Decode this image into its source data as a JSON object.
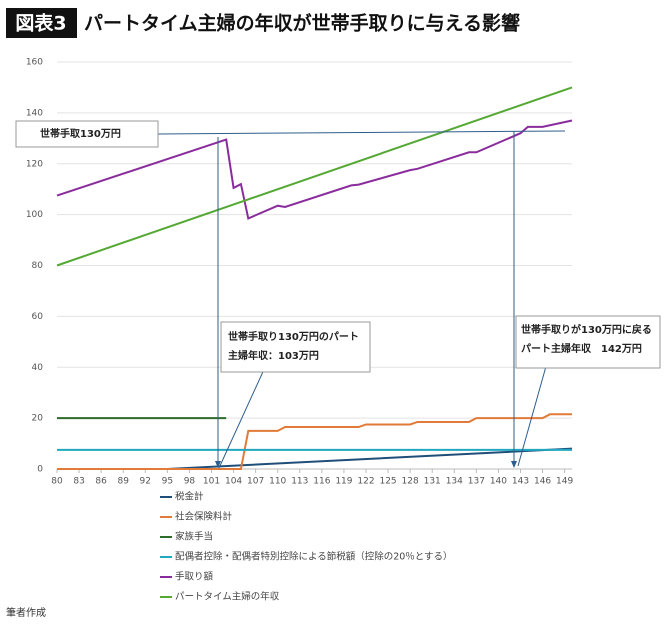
{
  "figure_label": "図表3",
  "chart_data": {
    "type": "line",
    "title": "パートタイム主婦の年収が世帯手取りに与える影響",
    "xlim": [
      80,
      150
    ],
    "xticks": [
      80,
      83,
      86,
      89,
      92,
      95,
      98,
      101,
      104,
      107,
      110,
      113,
      116,
      119,
      122,
      125,
      128,
      131,
      134,
      137,
      140,
      143,
      146,
      149
    ],
    "ylim": [
      0,
      160
    ],
    "yticks": [
      0,
      20,
      40,
      60,
      80,
      100,
      120,
      140,
      160
    ],
    "grid": true,
    "series": [
      {
        "name": "税金計",
        "color": "#1f4e79",
        "x": [
          80,
          95,
          150
        ],
        "values": [
          0,
          0,
          8
        ]
      },
      {
        "name": "社会保険料計",
        "color": "#e07b39",
        "x": [
          80,
          105,
          106,
          110,
          111,
          121,
          122,
          128,
          129,
          136,
          137,
          146,
          147,
          150
        ],
        "values": [
          0,
          0,
          15,
          15,
          16.5,
          16.5,
          17.5,
          17.5,
          18.5,
          18.5,
          20,
          20,
          21.5,
          21.5
        ]
      },
      {
        "name": "家族手当",
        "color": "#2e6b2a",
        "x": [
          80,
          103
        ],
        "values": [
          20,
          20
        ]
      },
      {
        "name": "配偶者控除・配偶者特別控除による節税額（控除の20％とする）",
        "color": "#22a7c0",
        "x": [
          80,
          150
        ],
        "values": [
          7.5,
          7.5
        ]
      },
      {
        "name": "手取り額",
        "color": "#8a2c9c",
        "x": [
          80,
          103,
          104,
          105,
          106,
          110,
          111,
          120,
          121,
          128,
          129,
          136,
          137,
          143,
          144,
          146,
          150
        ],
        "values": [
          107.5,
          129.5,
          110.5,
          112,
          98.5,
          103.5,
          103,
          111.5,
          111.8,
          117.5,
          118,
          124.5,
          124.5,
          132,
          134.5,
          134.5,
          137
        ]
      },
      {
        "name": "パートタイム主婦の年収",
        "color": "#55a834",
        "x": [
          80,
          150
        ],
        "values": [
          80,
          150
        ]
      }
    ],
    "annotations": [
      {
        "lines": [
          "世帯手取130万円"
        ]
      },
      {
        "lines": [
          "世帯手取り130万円のパート",
          "主婦年収：103万円"
        ]
      },
      {
        "lines": [
          "世帯手取りが130万円に戻る",
          "パート主婦年収　142万円"
        ]
      }
    ]
  },
  "source": "筆者作成"
}
